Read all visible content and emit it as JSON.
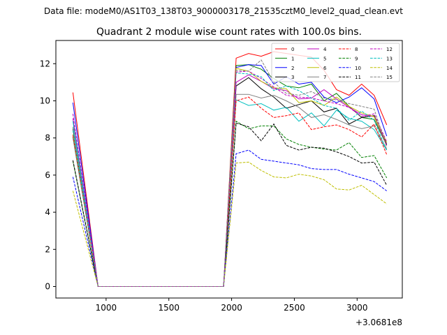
{
  "figure": {
    "suptitle": "Data file: modeM0/AS1T03_138T03_9000003178_21535cztM0_level2_quad_clean.evt",
    "offset_label": "+3.0681e8"
  },
  "chart_data": {
    "type": "line",
    "title": "Quadrant 2 module wise count rates with 100.0s bins.",
    "xlabel": "",
    "ylabel": "",
    "x_offset": 306810000,
    "xlim": [
      600,
      3360
    ],
    "ylim": [
      -0.62,
      13.25
    ],
    "xticks": [
      1000,
      1500,
      2000,
      2500,
      3000
    ],
    "yticks": [
      0,
      2,
      4,
      6,
      8,
      10,
      12
    ],
    "grid": false,
    "legend": {
      "position": "top-right",
      "columns": 4
    },
    "x": [
      736,
      936,
      1036,
      1136,
      1236,
      1336,
      1436,
      1536,
      1636,
      1736,
      1836,
      1936,
      2036,
      2136,
      2236,
      2336,
      2436,
      2536,
      2636,
      2736,
      2836,
      2936,
      3036,
      3136,
      3236
    ],
    "series": [
      {
        "name": "0",
        "color": "#ff0000",
        "dash": "solid",
        "values": [
          10.45,
          0,
          0,
          0,
          0,
          0,
          0,
          0,
          0,
          0,
          0,
          0,
          12.3,
          12.55,
          12.4,
          12.65,
          12.55,
          12.45,
          12.35,
          11.65,
          10.6,
          10.3,
          10.9,
          10.3,
          8.7
        ]
      },
      {
        "name": "1",
        "color": "#008000",
        "dash": "solid",
        "values": [
          8.05,
          0,
          0,
          0,
          0,
          0,
          0,
          0,
          0,
          0,
          0,
          0,
          11.9,
          11.95,
          11.7,
          11.2,
          10.8,
          10.7,
          10.9,
          10.0,
          10.4,
          9.7,
          9.1,
          9.0,
          7.6
        ]
      },
      {
        "name": "2",
        "color": "#0000ff",
        "dash": "solid",
        "values": [
          9.9,
          0,
          0,
          0,
          0,
          0,
          0,
          0,
          0,
          0,
          0,
          0,
          11.8,
          11.95,
          11.9,
          10.9,
          11.3,
          10.9,
          11.0,
          10.2,
          9.9,
          10.2,
          10.7,
          10.1,
          8.1
        ]
      },
      {
        "name": "3",
        "color": "#000000",
        "dash": "solid",
        "values": [
          8.5,
          0,
          0,
          0,
          0,
          0,
          0,
          0,
          0,
          0,
          0,
          0,
          10.8,
          11.25,
          10.65,
          10.2,
          9.6,
          9.8,
          10.0,
          9.4,
          9.6,
          8.75,
          9.1,
          9.2,
          7.65
        ]
      },
      {
        "name": "4",
        "color": "#bf00bf",
        "dash": "solid",
        "values": [
          9.05,
          0,
          0,
          0,
          0,
          0,
          0,
          0,
          0,
          0,
          0,
          0,
          11.0,
          11.4,
          11.05,
          10.65,
          10.55,
          10.1,
          10.15,
          10.6,
          10.1,
          9.65,
          9.25,
          9.15,
          7.6
        ]
      },
      {
        "name": "5",
        "color": "#00bfbf",
        "dash": "solid",
        "values": [
          8.9,
          0,
          0,
          0,
          0,
          0,
          0,
          0,
          0,
          0,
          0,
          0,
          10.05,
          9.75,
          9.85,
          9.5,
          9.65,
          8.9,
          9.35,
          8.65,
          9.5,
          9.05,
          8.9,
          8.45,
          7.35
        ]
      },
      {
        "name": "6",
        "color": "#bfbf00",
        "dash": "solid",
        "values": [
          8.2,
          0,
          0,
          0,
          0,
          0,
          0,
          0,
          0,
          0,
          0,
          0,
          11.75,
          11.6,
          11.05,
          10.7,
          10.65,
          9.9,
          10.0,
          9.75,
          10.2,
          9.7,
          9.35,
          9.15,
          7.75
        ]
      },
      {
        "name": "7",
        "color": "#808080",
        "dash": "solid",
        "values": [
          8.6,
          0,
          0,
          0,
          0,
          0,
          0,
          0,
          0,
          0,
          0,
          0,
          10.35,
          10.35,
          10.15,
          10.3,
          10.0,
          9.65,
          9.1,
          9.25,
          9.0,
          8.7,
          8.5,
          8.65,
          7.4
        ]
      },
      {
        "name": "8",
        "color": "#ff0000",
        "dash": "dashed",
        "values": [
          8.15,
          0,
          0,
          0,
          0,
          0,
          0,
          0,
          0,
          0,
          0,
          0,
          10.0,
          10.2,
          9.6,
          9.1,
          9.2,
          9.35,
          8.45,
          8.6,
          8.7,
          8.45,
          8.05,
          8.75,
          7.1
        ]
      },
      {
        "name": "9",
        "color": "#008000",
        "dash": "dashed",
        "values": [
          6.75,
          0,
          0,
          0,
          0,
          0,
          0,
          0,
          0,
          0,
          0,
          0,
          8.9,
          8.5,
          8.65,
          8.65,
          7.95,
          7.65,
          7.5,
          7.4,
          7.35,
          7.75,
          6.95,
          7.05,
          5.85
        ]
      },
      {
        "name": "10",
        "color": "#0000ff",
        "dash": "dashed",
        "values": [
          5.9,
          0,
          0,
          0,
          0,
          0,
          0,
          0,
          0,
          0,
          0,
          0,
          7.15,
          7.35,
          6.85,
          6.75,
          6.65,
          6.55,
          6.35,
          6.3,
          6.3,
          6.05,
          5.85,
          5.65,
          5.15
        ]
      },
      {
        "name": "11",
        "color": "#000000",
        "dash": "dashed",
        "values": [
          6.8,
          0,
          0,
          0,
          0,
          0,
          0,
          0,
          0,
          0,
          0,
          0,
          8.8,
          8.6,
          7.85,
          8.75,
          7.6,
          7.35,
          7.5,
          7.45,
          7.25,
          7.0,
          6.65,
          6.7,
          5.45
        ]
      },
      {
        "name": "12",
        "color": "#bf00bf",
        "dash": "dashed",
        "values": [
          9.3,
          0,
          0,
          0,
          0,
          0,
          0,
          0,
          0,
          0,
          0,
          0,
          11.55,
          11.6,
          11.2,
          10.75,
          10.3,
          10.2,
          10.15,
          10.0,
          9.85,
          9.65,
          9.15,
          9.3,
          7.8
        ]
      },
      {
        "name": "13",
        "color": "#00bfbf",
        "dash": "dashed",
        "values": [
          8.4,
          0,
          0,
          0,
          0,
          0,
          0,
          0,
          0,
          0,
          0,
          0,
          11.5,
          11.45,
          11.3,
          10.55,
          10.8,
          10.55,
          10.15,
          9.75,
          9.6,
          8.95,
          9.45,
          8.95,
          7.3
        ]
      },
      {
        "name": "14",
        "color": "#bfbf00",
        "dash": "dashed",
        "values": [
          5.15,
          0,
          0,
          0,
          0,
          0,
          0,
          0,
          0,
          0,
          0,
          0,
          6.65,
          6.7,
          6.25,
          5.9,
          5.85,
          6.05,
          5.95,
          5.75,
          5.25,
          5.2,
          5.45,
          4.95,
          4.45
        ]
      },
      {
        "name": "15",
        "color": "#808080",
        "dash": "dashed",
        "values": [
          8.0,
          0,
          0,
          0,
          0,
          0,
          0,
          0,
          0,
          0,
          0,
          0,
          11.65,
          11.6,
          12.2,
          11.0,
          10.4,
          10.3,
          10.5,
          10.15,
          10.05,
          9.85,
          9.7,
          9.55,
          7.5
        ]
      }
    ]
  }
}
